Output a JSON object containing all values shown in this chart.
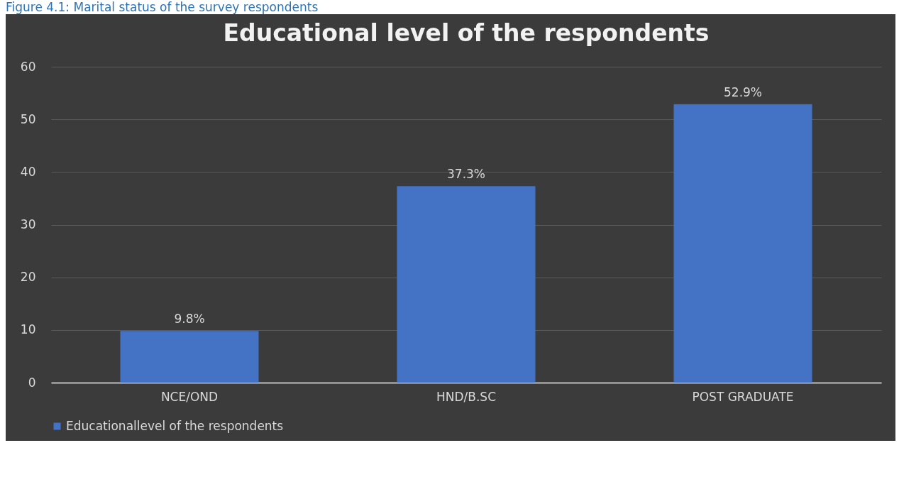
{
  "chart_data": {
    "type": "bar",
    "title": "Educational level of the respondents",
    "annotations": [
      "Figure 4.1: Marital status of the survey respondents"
    ],
    "categories": [
      "NCE/OND",
      "HND/B.SC",
      "POST GRADUATE"
    ],
    "series": [
      {
        "name": "Educationallevel of the respondents",
        "color": "#4472c4",
        "values": [
          9.8,
          37.3,
          52.9
        ],
        "value_labels": [
          "9.8%",
          "37.3%",
          "52.9%"
        ]
      }
    ],
    "ylim": [
      0,
      60
    ],
    "yticks": [
      0,
      10,
      20,
      30,
      40,
      50,
      60
    ],
    "grid": "y",
    "legend": "bottom"
  }
}
